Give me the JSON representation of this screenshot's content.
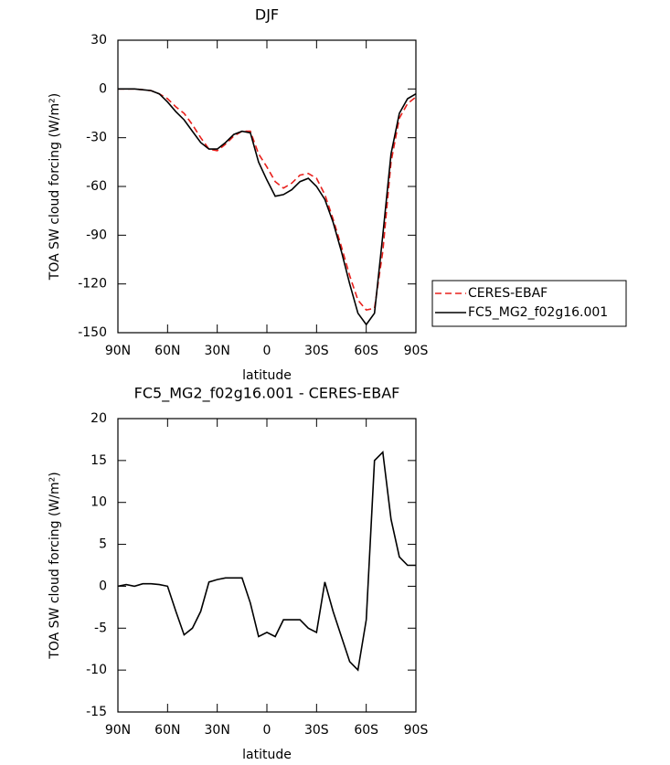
{
  "chart_data": [
    {
      "type": "line",
      "title": "DJF",
      "xlabel": "latitude",
      "ylabel": "TOA SW cloud forcing (W/m²)",
      "x": [
        90,
        85,
        80,
        75,
        70,
        65,
        60,
        55,
        50,
        45,
        40,
        35,
        30,
        25,
        20,
        15,
        10,
        5,
        0,
        -5,
        -10,
        -15,
        -20,
        -25,
        -30,
        -35,
        -40,
        -45,
        -50,
        -55,
        -60,
        -65,
        -70,
        -75,
        -80,
        -85,
        -90
      ],
      "series": [
        {
          "name": "CERES-EBAF",
          "color": "#e8201c",
          "dashed": true,
          "values": [
            0,
            0,
            0,
            -0.5,
            -1,
            -3,
            -6,
            -11,
            -15,
            -22,
            -30,
            -37,
            -38,
            -34,
            -29,
            -26,
            -26,
            -40,
            -48,
            -57,
            -61,
            -58,
            -53,
            -52,
            -55,
            -65,
            -80,
            -97,
            -115,
            -130,
            -136,
            -135,
            -100,
            -45,
            -18,
            -9,
            -5
          ]
        },
        {
          "name": "FC5_MG2_f02g16.001",
          "color": "#000000",
          "dashed": false,
          "values": [
            0,
            0,
            0,
            -0.5,
            -1,
            -3,
            -8,
            -14,
            -19,
            -26,
            -33,
            -37,
            -37,
            -33,
            -28,
            -26,
            -27,
            -45,
            -56,
            -66,
            -65,
            -62,
            -57,
            -55,
            -60,
            -68,
            -82,
            -100,
            -120,
            -138,
            -145,
            -138,
            -90,
            -40,
            -15,
            -6,
            -3
          ]
        }
      ],
      "xlim": [
        90,
        -90
      ],
      "xticks": [
        {
          "value": 90,
          "label": "90N"
        },
        {
          "value": 60,
          "label": "60N"
        },
        {
          "value": 30,
          "label": "30N"
        },
        0,
        {
          "value": -30,
          "label": "30S"
        },
        {
          "value": -60,
          "label": "60S"
        },
        {
          "value": -90,
          "label": "90S"
        }
      ],
      "ylim": [
        -150,
        30
      ],
      "yticks": [
        -150,
        -120,
        -90,
        -60,
        -30,
        0,
        30
      ],
      "legend": "right"
    },
    {
      "type": "line",
      "title": "FC5_MG2_f02g16.001 - CERES-EBAF",
      "xlabel": "latitude",
      "ylabel": "TOA SW cloud forcing (W/m²)",
      "x": [
        90,
        85,
        80,
        75,
        70,
        65,
        60,
        55,
        50,
        45,
        40,
        35,
        30,
        25,
        20,
        15,
        10,
        5,
        0,
        -5,
        -10,
        -15,
        -20,
        -25,
        -30,
        -35,
        -40,
        -45,
        -50,
        -55,
        -60,
        -65,
        -70,
        -75,
        -80,
        -85,
        -90
      ],
      "series": [
        {
          "color": "#000000",
          "dashed": false,
          "values": [
            0,
            0.2,
            0,
            0.3,
            0.3,
            0.2,
            0,
            -3,
            -5.8,
            -5,
            -3,
            0.5,
            0.8,
            1,
            1,
            1,
            -2,
            -6,
            -5.5,
            -6,
            -4,
            -4,
            -4,
            -5,
            -5.5,
            0.5,
            -3,
            -6,
            -9,
            -10,
            -4,
            15,
            16,
            8,
            3.5,
            2.5,
            2.5
          ]
        }
      ],
      "xlim": [
        90,
        -90
      ],
      "xticks": [
        {
          "value": 90,
          "label": "90N"
        },
        {
          "value": 60,
          "label": "60N"
        },
        {
          "value": 30,
          "label": "30N"
        },
        0,
        {
          "value": -30,
          "label": "30S"
        },
        {
          "value": -60,
          "label": "60S"
        },
        {
          "value": -90,
          "label": "90S"
        }
      ],
      "ylim": [
        -15,
        20
      ],
      "yticks": [
        -15,
        -10,
        -5,
        0,
        5,
        10,
        15,
        20
      ]
    }
  ]
}
